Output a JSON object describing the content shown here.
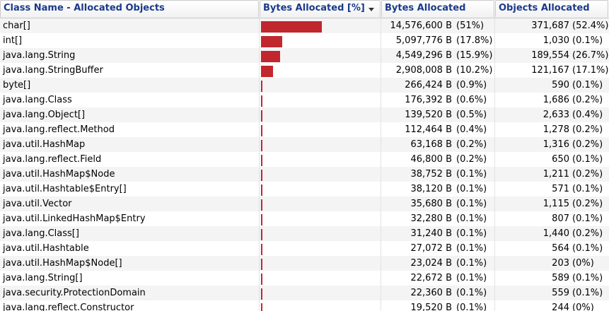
{
  "columns": {
    "class_name": "Class Name - Allocated Objects",
    "bytes_pct": "Bytes Allocated [%]",
    "bytes": "Bytes Allocated",
    "objects": "Objects Allocated"
  },
  "colors": {
    "bar": "#c1272d",
    "header_text": "#1a3a8a"
  },
  "rows": [
    {
      "name": "char[]",
      "bar_fraction": 0.51,
      "bytes": "14,576,600 B",
      "bytes_pct": "(51%)",
      "objects": "371,687",
      "objects_pct": "(52.4%)"
    },
    {
      "name": "int[]",
      "bar_fraction": 0.178,
      "bytes": "5,097,776 B",
      "bytes_pct": "(17.8%)",
      "objects": "1,030",
      "objects_pct": "(0.1%)"
    },
    {
      "name": "java.lang.String",
      "bar_fraction": 0.159,
      "bytes": "4,549,296 B",
      "bytes_pct": "(15.9%)",
      "objects": "189,554",
      "objects_pct": "(26.7%)"
    },
    {
      "name": "java.lang.StringBuffer",
      "bar_fraction": 0.102,
      "bytes": "2,908,008 B",
      "bytes_pct": "(10.2%)",
      "objects": "121,167",
      "objects_pct": "(17.1%)"
    },
    {
      "name": "byte[]",
      "bar_fraction": 0.009,
      "bytes": "266,424 B",
      "bytes_pct": "(0.9%)",
      "objects": "590",
      "objects_pct": "(0.1%)"
    },
    {
      "name": "java.lang.Class",
      "bar_fraction": 0.006,
      "bytes": "176,392 B",
      "bytes_pct": "(0.6%)",
      "objects": "1,686",
      "objects_pct": "(0.2%)"
    },
    {
      "name": "java.lang.Object[]",
      "bar_fraction": 0.005,
      "bytes": "139,520 B",
      "bytes_pct": "(0.5%)",
      "objects": "2,633",
      "objects_pct": "(0.4%)"
    },
    {
      "name": "java.lang.reflect.Method",
      "bar_fraction": 0.004,
      "bytes": "112,464 B",
      "bytes_pct": "(0.4%)",
      "objects": "1,278",
      "objects_pct": "(0.2%)"
    },
    {
      "name": "java.util.HashMap",
      "bar_fraction": 0.002,
      "bytes": "63,168 B",
      "bytes_pct": "(0.2%)",
      "objects": "1,316",
      "objects_pct": "(0.2%)"
    },
    {
      "name": "java.lang.reflect.Field",
      "bar_fraction": 0.002,
      "bytes": "46,800 B",
      "bytes_pct": "(0.2%)",
      "objects": "650",
      "objects_pct": "(0.1%)"
    },
    {
      "name": "java.util.HashMap$Node",
      "bar_fraction": 0.001,
      "bytes": "38,752 B",
      "bytes_pct": "(0.1%)",
      "objects": "1,211",
      "objects_pct": "(0.2%)"
    },
    {
      "name": "java.util.Hashtable$Entry[]",
      "bar_fraction": 0.001,
      "bytes": "38,120 B",
      "bytes_pct": "(0.1%)",
      "objects": "571",
      "objects_pct": "(0.1%)"
    },
    {
      "name": "java.util.Vector",
      "bar_fraction": 0.001,
      "bytes": "35,680 B",
      "bytes_pct": "(0.1%)",
      "objects": "1,115",
      "objects_pct": "(0.2%)"
    },
    {
      "name": "java.util.LinkedHashMap$Entry",
      "bar_fraction": 0.001,
      "bytes": "32,280 B",
      "bytes_pct": "(0.1%)",
      "objects": "807",
      "objects_pct": "(0.1%)"
    },
    {
      "name": "java.lang.Class[]",
      "bar_fraction": 0.001,
      "bytes": "31,240 B",
      "bytes_pct": "(0.1%)",
      "objects": "1,440",
      "objects_pct": "(0.2%)"
    },
    {
      "name": "java.util.Hashtable",
      "bar_fraction": 0.001,
      "bytes": "27,072 B",
      "bytes_pct": "(0.1%)",
      "objects": "564",
      "objects_pct": "(0.1%)"
    },
    {
      "name": "java.util.HashMap$Node[]",
      "bar_fraction": 0.001,
      "bytes": "23,024 B",
      "bytes_pct": "(0.1%)",
      "objects": "203",
      "objects_pct": "(0%)"
    },
    {
      "name": "java.lang.String[]",
      "bar_fraction": 0.001,
      "bytes": "22,672 B",
      "bytes_pct": "(0.1%)",
      "objects": "589",
      "objects_pct": "(0.1%)"
    },
    {
      "name": "java.security.ProtectionDomain",
      "bar_fraction": 0.001,
      "bytes": "22,360 B",
      "bytes_pct": "(0.1%)",
      "objects": "559",
      "objects_pct": "(0.1%)"
    },
    {
      "name": "java.lang.reflect.Constructor",
      "bar_fraction": 0.001,
      "bytes": "19,520 B",
      "bytes_pct": "(0.1%)",
      "objects": "244",
      "objects_pct": "(0%)"
    }
  ]
}
